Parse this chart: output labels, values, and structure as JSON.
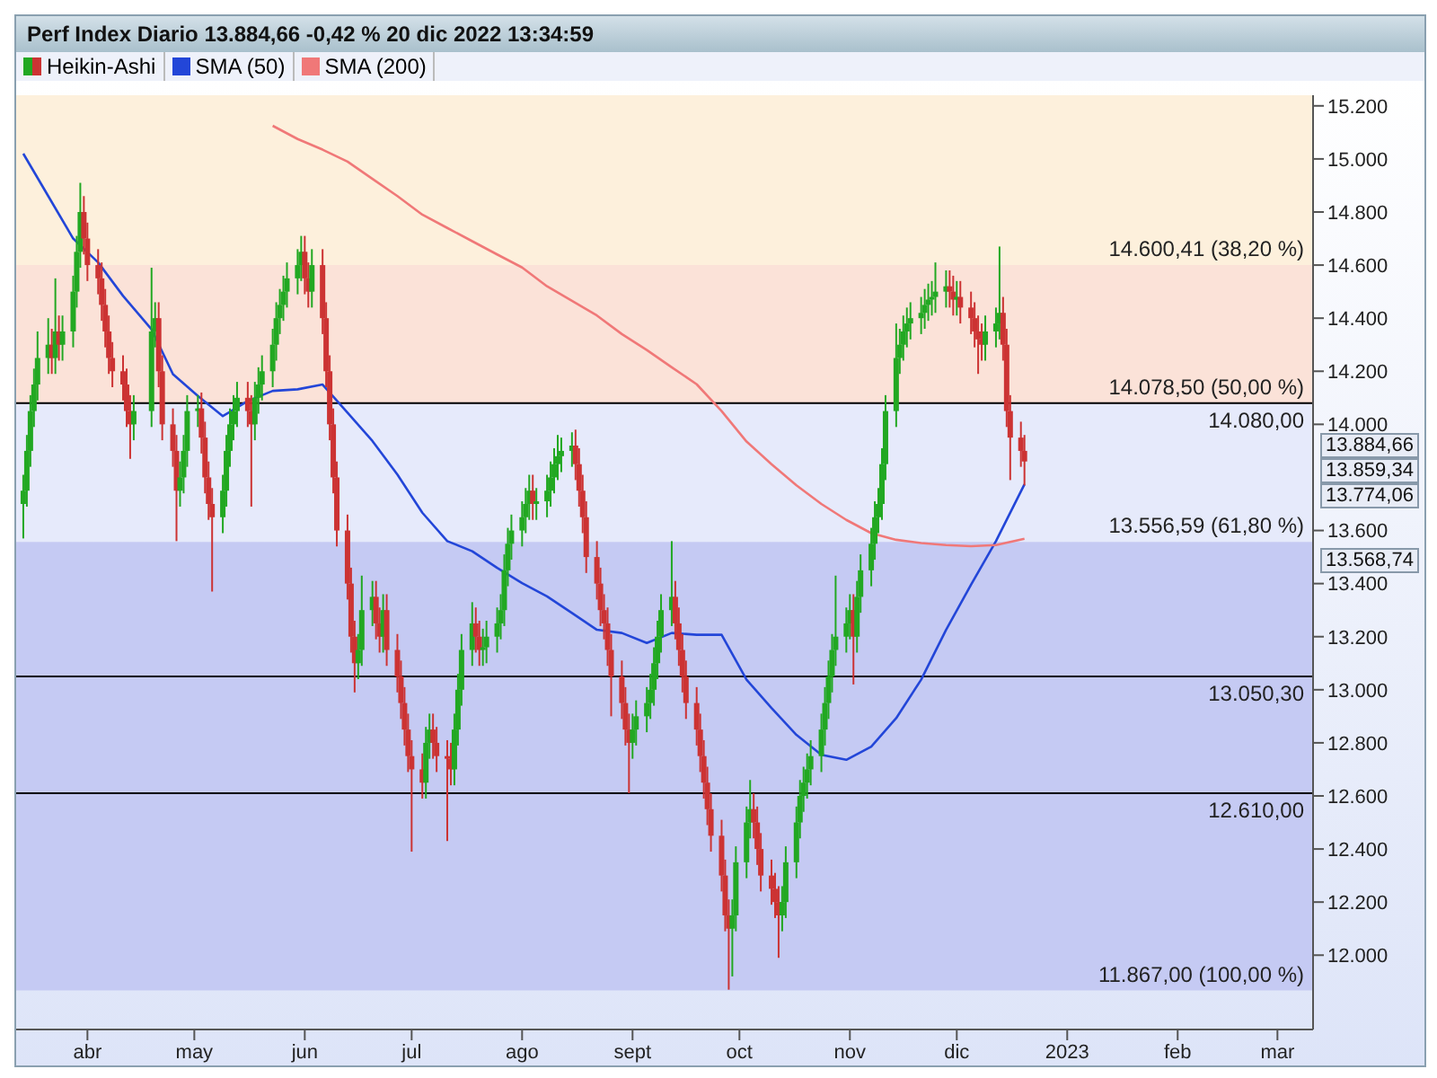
{
  "chart_data": {
    "type": "candlestick",
    "title": "Perf Index Diario 13.884,66 -0,42 % 20 dic 2022 13:34:59",
    "legend": "top left",
    "xlim": [
      "2022-03-12",
      "2023-03-11"
    ],
    "xticks": [
      {
        "value": "2022-04-01",
        "label": "abr"
      },
      {
        "value": "2022-05-01",
        "label": "may"
      },
      {
        "value": "2022-06-01",
        "label": "jun"
      },
      {
        "value": "2022-07-01",
        "label": "jul"
      },
      {
        "value": "2022-08-01",
        "label": "ago"
      },
      {
        "value": "2022-09-01",
        "label": "sept"
      },
      {
        "value": "2022-10-01",
        "label": "oct"
      },
      {
        "value": "2022-11-01",
        "label": "nov"
      },
      {
        "value": "2022-12-01",
        "label": "dic"
      },
      {
        "value": "2023-01-01",
        "label": "2023"
      },
      {
        "value": "2023-02-01",
        "label": "feb"
      },
      {
        "value": "2023-03-01",
        "label": "mar"
      }
    ],
    "ylim": [
      11720,
      15240
    ],
    "yticks": [
      {
        "value": 12000,
        "label": "12.000"
      },
      {
        "value": 12200,
        "label": "12.200"
      },
      {
        "value": 12400,
        "label": "12.400"
      },
      {
        "value": 12600,
        "label": "12.600"
      },
      {
        "value": 12800,
        "label": "12.800"
      },
      {
        "value": 13000,
        "label": "13.000"
      },
      {
        "value": 13200,
        "label": "13.200"
      },
      {
        "value": 13400,
        "label": "13.400"
      },
      {
        "value": 13600,
        "label": "13.600"
      },
      {
        "value": 14000,
        "label": "14.000"
      },
      {
        "value": 14200,
        "label": "14.200"
      },
      {
        "value": 14400,
        "label": "14.400"
      },
      {
        "value": 14600,
        "label": "14.600"
      },
      {
        "value": 14800,
        "label": "14.800"
      },
      {
        "value": 15000,
        "label": "15.000"
      },
      {
        "value": 15200,
        "label": "15.200"
      }
    ],
    "ref_lines": [
      {
        "axis": "y",
        "value": 14080,
        "label": "14.080,00",
        "color": "#000000"
      },
      {
        "axis": "y",
        "value": 13050.3,
        "label": "13.050,30",
        "color": "#000000"
      },
      {
        "axis": "y",
        "value": 12610,
        "label": "12.610,00",
        "color": "#000000"
      }
    ],
    "bands": [
      {
        "axis": "y",
        "from": 14600.41,
        "to": 15240,
        "label": "14.600,41 (38,20 %)",
        "color": "#fdf0dc"
      },
      {
        "axis": "y",
        "from": 14078.5,
        "to": 14600.41,
        "label": "14.078,50 (50,00 %)",
        "color": "#fbe2d8"
      },
      {
        "axis": "y",
        "from": 13556.59,
        "to": 14078.5,
        "label": "13.556,59 (61,80 %)",
        "color": "#e6eafb"
      },
      {
        "axis": "y",
        "from": 11867,
        "to": 13556.59,
        "label": "11.867,00 (100,00 %)",
        "color": "#c5caf3"
      }
    ],
    "annotations": [
      "13.884,66",
      "13.859,34",
      "13.774,06",
      "13.568,74"
    ],
    "series": [
      {
        "name": "Heikin-Ashi",
        "color": "#22a822",
        "colors": [
          "#22a822",
          "#22a822",
          "#22a822",
          "#22a822",
          "#22a822",
          "#22a822",
          "#cc3333",
          "#22a822",
          "#cc3333",
          "#22a822",
          "#22a822",
          "#22a822",
          "#22a822",
          "#cc3333",
          "#cc3333",
          "#cc3333",
          "#cc3333",
          "#cc3333",
          "#cc3333",
          "#cc3333",
          "#cc3333",
          "#cc3333",
          "#cc3333",
          "#22a822",
          "#22a822",
          "#22a822",
          "#cc3333",
          "#cc3333",
          "#cc3333",
          "#cc3333",
          "#22a822",
          "#22a822",
          "#22a822",
          "#22a822",
          "#cc3333",
          "#cc3333",
          "#cc3333",
          "#cc3333",
          "#22a822",
          "#22a822",
          "#22a822",
          "#22a822",
          "#22a822",
          "#cc3333",
          "#cc3333",
          "#22a822",
          "#22a822",
          "#22a822",
          "#22a822",
          "#22a822",
          "#22a822",
          "#22a822",
          "#22a822",
          "#22a822",
          "#22a822",
          "#cc3333",
          "#cc3333",
          "#22a822",
          "#cc3333",
          "#cc3333",
          "#cc3333",
          "#cc3333",
          "#cc3333",
          "#cc3333",
          "#cc3333",
          "#cc3333",
          "#22a822",
          "#22a822",
          "#22a822",
          "#cc3333",
          "#cc3333",
          "#22a822",
          "#cc3333",
          "#cc3333",
          "#cc3333",
          "#cc3333",
          "#cc3333",
          "#cc3333",
          "#cc3333",
          "#22a822",
          "#22a822",
          "#cc3333",
          "#cc3333",
          "#cc3333",
          "#cc3333",
          "#22a822",
          "#22a822",
          "#22a822",
          "#22a822",
          "#cc3333",
          "#cc3333",
          "#22a822",
          "#22a822",
          "#22a822",
          "#22a822",
          "#22a822",
          "#22a822",
          "#22a822",
          "#22a822",
          "#22a822",
          "#22a822",
          "#cc3333",
          "#22a822",
          "#22a822",
          "#22a822",
          "#22a822",
          "#22a822",
          "#22a822",
          "#22a822",
          "#cc3333",
          "#cc3333",
          "#cc3333",
          "#cc3333",
          "#cc3333",
          "#cc3333",
          "#cc3333",
          "#cc3333",
          "#cc3333",
          "#cc3333",
          "#cc3333",
          "#cc3333",
          "#22a822",
          "#22a822",
          "#22a822",
          "#22a822",
          "#22a822",
          "#22a822",
          "#22a822",
          "#22a822",
          "#cc3333",
          "#cc3333",
          "#cc3333",
          "#cc3333",
          "#cc3333",
          "#cc3333",
          "#cc3333",
          "#cc3333",
          "#cc3333",
          "#cc3333",
          "#cc3333",
          "#cc3333",
          "#22a822",
          "#22a822",
          "#22a822",
          "#22a822",
          "#cc3333",
          "#cc3333",
          "#cc3333",
          "#cc3333",
          "#cc3333",
          "#cc3333",
          "#22a822",
          "#22a822",
          "#22a822",
          "#22a822",
          "#22a822",
          "#22a822",
          "#22a822",
          "#22a822",
          "#22a822",
          "#22a822",
          "#22a822",
          "#22a822",
          "#22a822",
          "#22a822",
          "#cc3333",
          "#22a822",
          "#22a822",
          "#22a822",
          "#22a822",
          "#22a822",
          "#22a822",
          "#22a822",
          "#22a822",
          "#22a822",
          "#22a822",
          "#22a822",
          "#22a822",
          "#22a822",
          "#22a822",
          "#22a822",
          "#22a822",
          "#22a822",
          "#22a822",
          "#cc3333",
          "#cc3333",
          "#22a822",
          "#cc3333",
          "#cc3333",
          "#cc3333",
          "#cc3333",
          "#cc3333",
          "#22a822",
          "#22a822",
          "#22a822",
          "#cc3333",
          "#cc3333",
          "#cc3333",
          "#cc3333",
          "#cc3333"
        ],
        "x": [
          "2022-03-14",
          "2022-03-15",
          "2022-03-16",
          "2022-03-17",
          "2022-03-18",
          "2022-03-21",
          "2022-03-22",
          "2022-03-23",
          "2022-03-24",
          "2022-03-25",
          "2022-03-28",
          "2022-03-29",
          "2022-03-30",
          "2022-03-31",
          "2022-04-01",
          "2022-04-04",
          "2022-04-05",
          "2022-04-06",
          "2022-04-07",
          "2022-04-08",
          "2022-04-11",
          "2022-04-12",
          "2022-04-13",
          "2022-04-14",
          "2022-04-19",
          "2022-04-20",
          "2022-04-21",
          "2022-04-22",
          "2022-04-25",
          "2022-04-26",
          "2022-04-27",
          "2022-04-28",
          "2022-04-29",
          "2022-05-02",
          "2022-05-03",
          "2022-05-04",
          "2022-05-05",
          "2022-05-06",
          "2022-05-09",
          "2022-05-10",
          "2022-05-11",
          "2022-05-12",
          "2022-05-13",
          "2022-05-16",
          "2022-05-17",
          "2022-05-18",
          "2022-05-19",
          "2022-05-20",
          "2022-05-23",
          "2022-05-24",
          "2022-05-25",
          "2022-05-26",
          "2022-05-27",
          "2022-05-30",
          "2022-05-31",
          "2022-06-01",
          "2022-06-02",
          "2022-06-03",
          "2022-06-06",
          "2022-06-07",
          "2022-06-08",
          "2022-06-09",
          "2022-06-10",
          "2022-06-13",
          "2022-06-14",
          "2022-06-15",
          "2022-06-16",
          "2022-06-17",
          "2022-06-20",
          "2022-06-21",
          "2022-06-22",
          "2022-06-23",
          "2022-06-24",
          "2022-06-27",
          "2022-06-28",
          "2022-06-29",
          "2022-06-30",
          "2022-07-01",
          "2022-07-04",
          "2022-07-05",
          "2022-07-06",
          "2022-07-07",
          "2022-07-08",
          "2022-07-11",
          "2022-07-12",
          "2022-07-13",
          "2022-07-14",
          "2022-07-15",
          "2022-07-18",
          "2022-07-19",
          "2022-07-20",
          "2022-07-21",
          "2022-07-22",
          "2022-07-25",
          "2022-07-26",
          "2022-07-27",
          "2022-07-28",
          "2022-07-29",
          "2022-08-01",
          "2022-08-02",
          "2022-08-03",
          "2022-08-04",
          "2022-08-05",
          "2022-08-08",
          "2022-08-09",
          "2022-08-10",
          "2022-08-11",
          "2022-08-12",
          "2022-08-15",
          "2022-08-16",
          "2022-08-17",
          "2022-08-18",
          "2022-08-19",
          "2022-08-22",
          "2022-08-23",
          "2022-08-24",
          "2022-08-25",
          "2022-08-26",
          "2022-08-29",
          "2022-08-30",
          "2022-08-31",
          "2022-09-01",
          "2022-09-02",
          "2022-09-05",
          "2022-09-06",
          "2022-09-07",
          "2022-09-08",
          "2022-09-09",
          "2022-09-12",
          "2022-09-13",
          "2022-09-14",
          "2022-09-15",
          "2022-09-16",
          "2022-09-19",
          "2022-09-20",
          "2022-09-21",
          "2022-09-22",
          "2022-09-23",
          "2022-09-26",
          "2022-09-27",
          "2022-09-28",
          "2022-09-29",
          "2022-09-30",
          "2022-10-03",
          "2022-10-04",
          "2022-10-05",
          "2022-10-06",
          "2022-10-07",
          "2022-10-10",
          "2022-10-11",
          "2022-10-12",
          "2022-10-13",
          "2022-10-14",
          "2022-10-17",
          "2022-10-18",
          "2022-10-19",
          "2022-10-20",
          "2022-10-21",
          "2022-10-24",
          "2022-10-25",
          "2022-10-26",
          "2022-10-27",
          "2022-10-28",
          "2022-10-31",
          "2022-11-01",
          "2022-11-02",
          "2022-11-03",
          "2022-11-04",
          "2022-11-07",
          "2022-11-08",
          "2022-11-09",
          "2022-11-10",
          "2022-11-11",
          "2022-11-14",
          "2022-11-15",
          "2022-11-16",
          "2022-11-17",
          "2022-11-18",
          "2022-11-21",
          "2022-11-22",
          "2022-11-23",
          "2022-11-24",
          "2022-11-25",
          "2022-11-28",
          "2022-11-29",
          "2022-11-30",
          "2022-12-01",
          "2022-12-02",
          "2022-12-05",
          "2022-12-06",
          "2022-12-07",
          "2022-12-08",
          "2022-12-09",
          "2022-12-12",
          "2022-12-13",
          "2022-12-14",
          "2022-12-15",
          "2022-12-16",
          "2022-12-19",
          "2022-12-20"
        ],
        "ohlc": [
          [
            13700,
            13810,
            13570,
            13750
          ],
          [
            13750,
            13960,
            13690,
            13900
          ],
          [
            13900,
            14110,
            13840,
            14050
          ],
          [
            14050,
            14210,
            13990,
            14150
          ],
          [
            14150,
            14350,
            14090,
            14250
          ],
          [
            14250,
            14400,
            14190,
            14300
          ],
          [
            14300,
            14360,
            14190,
            14250
          ],
          [
            14250,
            14550,
            14190,
            14350
          ],
          [
            14350,
            14410,
            14240,
            14300
          ],
          [
            14300,
            14410,
            14240,
            14350
          ],
          [
            14350,
            14560,
            14290,
            14500
          ],
          [
            14500,
            14710,
            14440,
            14650
          ],
          [
            14650,
            14910,
            14590,
            14800
          ],
          [
            14800,
            14860,
            14640,
            14700
          ],
          [
            14700,
            14760,
            14540,
            14600
          ],
          [
            14600,
            14660,
            14490,
            14550
          ],
          [
            14550,
            14610,
            14390,
            14450
          ],
          [
            14450,
            14510,
            14290,
            14350
          ],
          [
            14350,
            14410,
            14190,
            14250
          ],
          [
            14250,
            14310,
            14140,
            14200
          ],
          [
            14200,
            14260,
            14090,
            14150
          ],
          [
            14150,
            14210,
            13990,
            14050
          ],
          [
            14050,
            14110,
            13870,
            14000
          ],
          [
            14000,
            14110,
            13940,
            14050
          ],
          [
            14050,
            14590,
            13990,
            14350
          ],
          [
            14350,
            14460,
            14290,
            14400
          ],
          [
            14400,
            14460,
            14140,
            14200
          ],
          [
            14200,
            14260,
            13940,
            14000
          ],
          [
            14000,
            14060,
            13840,
            13900
          ],
          [
            13900,
            13960,
            13560,
            13750
          ],
          [
            13750,
            13860,
            13690,
            13800
          ],
          [
            13800,
            13960,
            13740,
            13900
          ],
          [
            13900,
            14110,
            13840,
            14050
          ],
          [
            14050,
            14110,
            13990,
            14060
          ],
          [
            14060,
            14120,
            13890,
            13950
          ],
          [
            13950,
            14010,
            13740,
            13800
          ],
          [
            13800,
            13860,
            13640,
            13700
          ],
          [
            13700,
            13760,
            13370,
            13650
          ],
          [
            13650,
            13810,
            13590,
            13750
          ],
          [
            13750,
            13960,
            13690,
            13900
          ],
          [
            13900,
            14060,
            13840,
            14000
          ],
          [
            14000,
            14110,
            13940,
            14050
          ],
          [
            14050,
            14160,
            13990,
            14100
          ],
          [
            14100,
            14160,
            13990,
            14050
          ],
          [
            14050,
            14110,
            13690,
            14000
          ],
          [
            14000,
            14160,
            13940,
            14100
          ],
          [
            14100,
            14215,
            14040,
            14150
          ],
          [
            14150,
            14260,
            14090,
            14200
          ],
          [
            14200,
            14360,
            14140,
            14300
          ],
          [
            14300,
            14460,
            14240,
            14400
          ],
          [
            14400,
            14510,
            14340,
            14450
          ],
          [
            14450,
            14560,
            14390,
            14500
          ],
          [
            14500,
            14610,
            14440,
            14550
          ],
          [
            14550,
            14660,
            14490,
            14600
          ],
          [
            14600,
            14710,
            14540,
            14650
          ],
          [
            14650,
            14710,
            14490,
            14550
          ],
          [
            14550,
            14610,
            14440,
            14500
          ],
          [
            14500,
            14660,
            14440,
            14600
          ],
          [
            14600,
            14660,
            14340,
            14400
          ],
          [
            14400,
            14460,
            14140,
            14200
          ],
          [
            14200,
            14260,
            13940,
            14000
          ],
          [
            14000,
            14060,
            13740,
            13800
          ],
          [
            13800,
            13860,
            13540,
            13600
          ],
          [
            13600,
            13660,
            13340,
            13400
          ],
          [
            13400,
            13460,
            13140,
            13200
          ],
          [
            13200,
            13260,
            12990,
            13100
          ],
          [
            13100,
            13210,
            13040,
            13150
          ],
          [
            13150,
            13430,
            13090,
            13300
          ],
          [
            13300,
            13410,
            13240,
            13350
          ],
          [
            13350,
            13410,
            13190,
            13250
          ],
          [
            13250,
            13310,
            13140,
            13200
          ],
          [
            13200,
            13360,
            13140,
            13300
          ],
          [
            13300,
            13360,
            13090,
            13150
          ],
          [
            13150,
            13210,
            12990,
            13050
          ],
          [
            13050,
            13110,
            12890,
            12950
          ],
          [
            12950,
            13010,
            12790,
            12850
          ],
          [
            12850,
            12910,
            12690,
            12750
          ],
          [
            12750,
            12810,
            12390,
            12700
          ],
          [
            12700,
            12760,
            12590,
            12650
          ],
          [
            12650,
            12860,
            12590,
            12800
          ],
          [
            12800,
            12910,
            12740,
            12850
          ],
          [
            12850,
            12910,
            12740,
            12800
          ],
          [
            12800,
            12860,
            12690,
            12750
          ],
          [
            12750,
            12810,
            12430,
            12740
          ],
          [
            12740,
            12800,
            12640,
            12700
          ],
          [
            12700,
            12910,
            12640,
            12850
          ],
          [
            12850,
            13060,
            12790,
            13000
          ],
          [
            13000,
            13210,
            12940,
            13150
          ],
          [
            13150,
            13330,
            13090,
            13250
          ],
          [
            13250,
            13310,
            13140,
            13200
          ],
          [
            13200,
            13260,
            13090,
            13150
          ],
          [
            13150,
            13230,
            13090,
            13160
          ],
          [
            13160,
            13260,
            13100,
            13200
          ],
          [
            13200,
            13310,
            13140,
            13250
          ],
          [
            13250,
            13360,
            13190,
            13300
          ],
          [
            13300,
            13510,
            13240,
            13450
          ],
          [
            13450,
            13610,
            13390,
            13550
          ],
          [
            13550,
            13660,
            13490,
            13600
          ],
          [
            13600,
            13710,
            13540,
            13650
          ],
          [
            13650,
            13760,
            13590,
            13700
          ],
          [
            13700,
            13810,
            13640,
            13750
          ],
          [
            13750,
            13810,
            13640,
            13700
          ],
          [
            13700,
            13760,
            13640,
            13710
          ],
          [
            13710,
            13810,
            13650,
            13750
          ],
          [
            13750,
            13860,
            13690,
            13800
          ],
          [
            13800,
            13910,
            13740,
            13850
          ],
          [
            13850,
            13960,
            13790,
            13880
          ],
          [
            13880,
            13950,
            13820,
            13900
          ],
          [
            13900,
            13970,
            13840,
            13920
          ],
          [
            13920,
            13980,
            13790,
            13850
          ],
          [
            13850,
            13910,
            13690,
            13750
          ],
          [
            13750,
            13810,
            13590,
            13650
          ],
          [
            13650,
            13710,
            13440,
            13500
          ],
          [
            13500,
            13560,
            13340,
            13400
          ],
          [
            13400,
            13460,
            13240,
            13300
          ],
          [
            13300,
            13360,
            13190,
            13250
          ],
          [
            13250,
            13310,
            13090,
            13150
          ],
          [
            13150,
            13210,
            12900,
            13050
          ],
          [
            13050,
            13110,
            12890,
            12950
          ],
          [
            12950,
            13010,
            12790,
            12850
          ],
          [
            12850,
            12910,
            12610,
            12800
          ],
          [
            12800,
            12910,
            12740,
            12850
          ],
          [
            12850,
            12960,
            12790,
            12900
          ],
          [
            12900,
            13010,
            12840,
            12950
          ],
          [
            12950,
            13060,
            12890,
            13000
          ],
          [
            13000,
            13160,
            12940,
            13100
          ],
          [
            13100,
            13260,
            13040,
            13200
          ],
          [
            13200,
            13360,
            13140,
            13300
          ],
          [
            13300,
            13560,
            13240,
            13350
          ],
          [
            13350,
            13410,
            13190,
            13250
          ],
          [
            13250,
            13310,
            13090,
            13150
          ],
          [
            13150,
            13210,
            12990,
            13050
          ],
          [
            13050,
            13110,
            12890,
            12950
          ],
          [
            12950,
            13010,
            12790,
            12850
          ],
          [
            12850,
            12910,
            12690,
            12750
          ],
          [
            12750,
            12810,
            12590,
            12650
          ],
          [
            12650,
            12710,
            12490,
            12550
          ],
          [
            12550,
            12610,
            12390,
            12450
          ],
          [
            12450,
            12510,
            12240,
            12300
          ],
          [
            12300,
            12360,
            12090,
            12150
          ],
          [
            12150,
            12210,
            11870,
            12100
          ],
          [
            12100,
            12210,
            11920,
            12150
          ],
          [
            12150,
            12410,
            12090,
            12350
          ],
          [
            12350,
            12560,
            12290,
            12500
          ],
          [
            12500,
            12660,
            12440,
            12550
          ],
          [
            12550,
            12610,
            12440,
            12500
          ],
          [
            12500,
            12560,
            12340,
            12400
          ],
          [
            12400,
            12460,
            12240,
            12300
          ],
          [
            12300,
            12360,
            12190,
            12250
          ],
          [
            12250,
            12310,
            12140,
            12200
          ],
          [
            12200,
            12260,
            11990,
            12150
          ],
          [
            12150,
            12260,
            12090,
            12200
          ],
          [
            12200,
            12410,
            12140,
            12350
          ],
          [
            12350,
            12560,
            12290,
            12500
          ],
          [
            12500,
            12660,
            12440,
            12600
          ],
          [
            12600,
            12710,
            12540,
            12650
          ],
          [
            12650,
            12760,
            12590,
            12700
          ],
          [
            12700,
            12810,
            12640,
            12750
          ],
          [
            12750,
            12910,
            12690,
            12850
          ],
          [
            12850,
            13010,
            12790,
            12950
          ],
          [
            12950,
            13110,
            12890,
            13050
          ],
          [
            13050,
            13210,
            12990,
            13150
          ],
          [
            13150,
            13430,
            13090,
            13200
          ],
          [
            13200,
            13310,
            13140,
            13250
          ],
          [
            13250,
            13360,
            13190,
            13300
          ],
          [
            13300,
            13360,
            13020,
            13200
          ],
          [
            13200,
            13410,
            13140,
            13350
          ],
          [
            13350,
            13510,
            13290,
            13450
          ],
          [
            13450,
            13610,
            13390,
            13550
          ],
          [
            13550,
            13710,
            13490,
            13650
          ],
          [
            13650,
            13760,
            13590,
            13700
          ],
          [
            13700,
            13910,
            13640,
            13850
          ],
          [
            13850,
            14110,
            13790,
            14050
          ],
          [
            14050,
            14380,
            13990,
            14250
          ],
          [
            14250,
            14360,
            14190,
            14300
          ],
          [
            14300,
            14410,
            14240,
            14350
          ],
          [
            14350,
            14440,
            14290,
            14380
          ],
          [
            14380,
            14460,
            14320,
            14400
          ],
          [
            14400,
            14480,
            14340,
            14420
          ],
          [
            14420,
            14510,
            14360,
            14450
          ],
          [
            14450,
            14530,
            14390,
            14470
          ],
          [
            14470,
            14540,
            14410,
            14480
          ],
          [
            14480,
            14610,
            14420,
            14500
          ],
          [
            14500,
            14580,
            14440,
            14520
          ],
          [
            14520,
            14580,
            14440,
            14500
          ],
          [
            14500,
            14560,
            14410,
            14470
          ],
          [
            14470,
            14540,
            14410,
            14480
          ],
          [
            14480,
            14540,
            14380,
            14440
          ],
          [
            14440,
            14500,
            14340,
            14400
          ],
          [
            14400,
            14460,
            14290,
            14350
          ],
          [
            14350,
            14410,
            14190,
            14320
          ],
          [
            14320,
            14380,
            14240,
            14300
          ],
          [
            14300,
            14410,
            14240,
            14350
          ],
          [
            14350,
            14440,
            14290,
            14380
          ],
          [
            14380,
            14670,
            14320,
            14420
          ],
          [
            14420,
            14480,
            14240,
            14300
          ],
          [
            14300,
            14360,
            13990,
            14050
          ],
          [
            14050,
            14110,
            13790,
            13950
          ],
          [
            13950,
            14010,
            13840,
            13900
          ],
          [
            13900,
            13960,
            13770,
            13860
          ]
        ]
      },
      {
        "type": "line",
        "name": "SMA (50)",
        "color": "#2346d8",
        "x": [
          "2022-03-14",
          "2022-03-21",
          "2022-03-28",
          "2022-04-04",
          "2022-04-11",
          "2022-04-19",
          "2022-04-25",
          "2022-05-02",
          "2022-05-09",
          "2022-05-16",
          "2022-05-23",
          "2022-05-30",
          "2022-06-06",
          "2022-06-13",
          "2022-06-20",
          "2022-06-27",
          "2022-07-04",
          "2022-07-11",
          "2022-07-18",
          "2022-07-25",
          "2022-08-01",
          "2022-08-08",
          "2022-08-15",
          "2022-08-22",
          "2022-08-29",
          "2022-09-05",
          "2022-09-12",
          "2022-09-19",
          "2022-09-26",
          "2022-10-03",
          "2022-10-10",
          "2022-10-17",
          "2022-10-24",
          "2022-10-31",
          "2022-11-07",
          "2022-11-14",
          "2022-11-21",
          "2022-11-28",
          "2022-12-05",
          "2022-12-12",
          "2022-12-20"
        ],
        "values": [
          15020,
          14860,
          14700,
          14610,
          14484,
          14358,
          14189,
          14107,
          14031,
          14088,
          14126,
          14132,
          14150,
          14044,
          13937,
          13811,
          13667,
          13560,
          13522,
          13459,
          13402,
          13352,
          13289,
          13226,
          13214,
          13176,
          13214,
          13207,
          13207,
          13038,
          12931,
          12830,
          12755,
          12736,
          12786,
          12893,
          13038,
          13226,
          13396,
          13560,
          13774
        ]
      },
      {
        "type": "line",
        "name": "SMA (200)",
        "color": "#f07878",
        "x": [
          "2022-05-23",
          "2022-05-30",
          "2022-06-06",
          "2022-06-13",
          "2022-06-20",
          "2022-06-27",
          "2022-07-04",
          "2022-07-11",
          "2022-07-18",
          "2022-07-25",
          "2022-08-01",
          "2022-08-08",
          "2022-08-15",
          "2022-08-22",
          "2022-08-29",
          "2022-09-05",
          "2022-09-12",
          "2022-09-19",
          "2022-09-26",
          "2022-10-03",
          "2022-10-10",
          "2022-10-17",
          "2022-10-24",
          "2022-10-31",
          "2022-11-07",
          "2022-11-14",
          "2022-11-21",
          "2022-11-28",
          "2022-12-05",
          "2022-12-12",
          "2022-12-20"
        ],
        "values": [
          15125,
          15075,
          15035,
          14990,
          14925,
          14860,
          14790,
          14740,
          14690,
          14640,
          14591,
          14520,
          14465,
          14410,
          14340,
          14280,
          14215,
          14151,
          14050,
          13935,
          13850,
          13770,
          13700,
          13640,
          13590,
          13565,
          13553,
          13545,
          13541,
          13545,
          13569
        ]
      }
    ]
  }
}
